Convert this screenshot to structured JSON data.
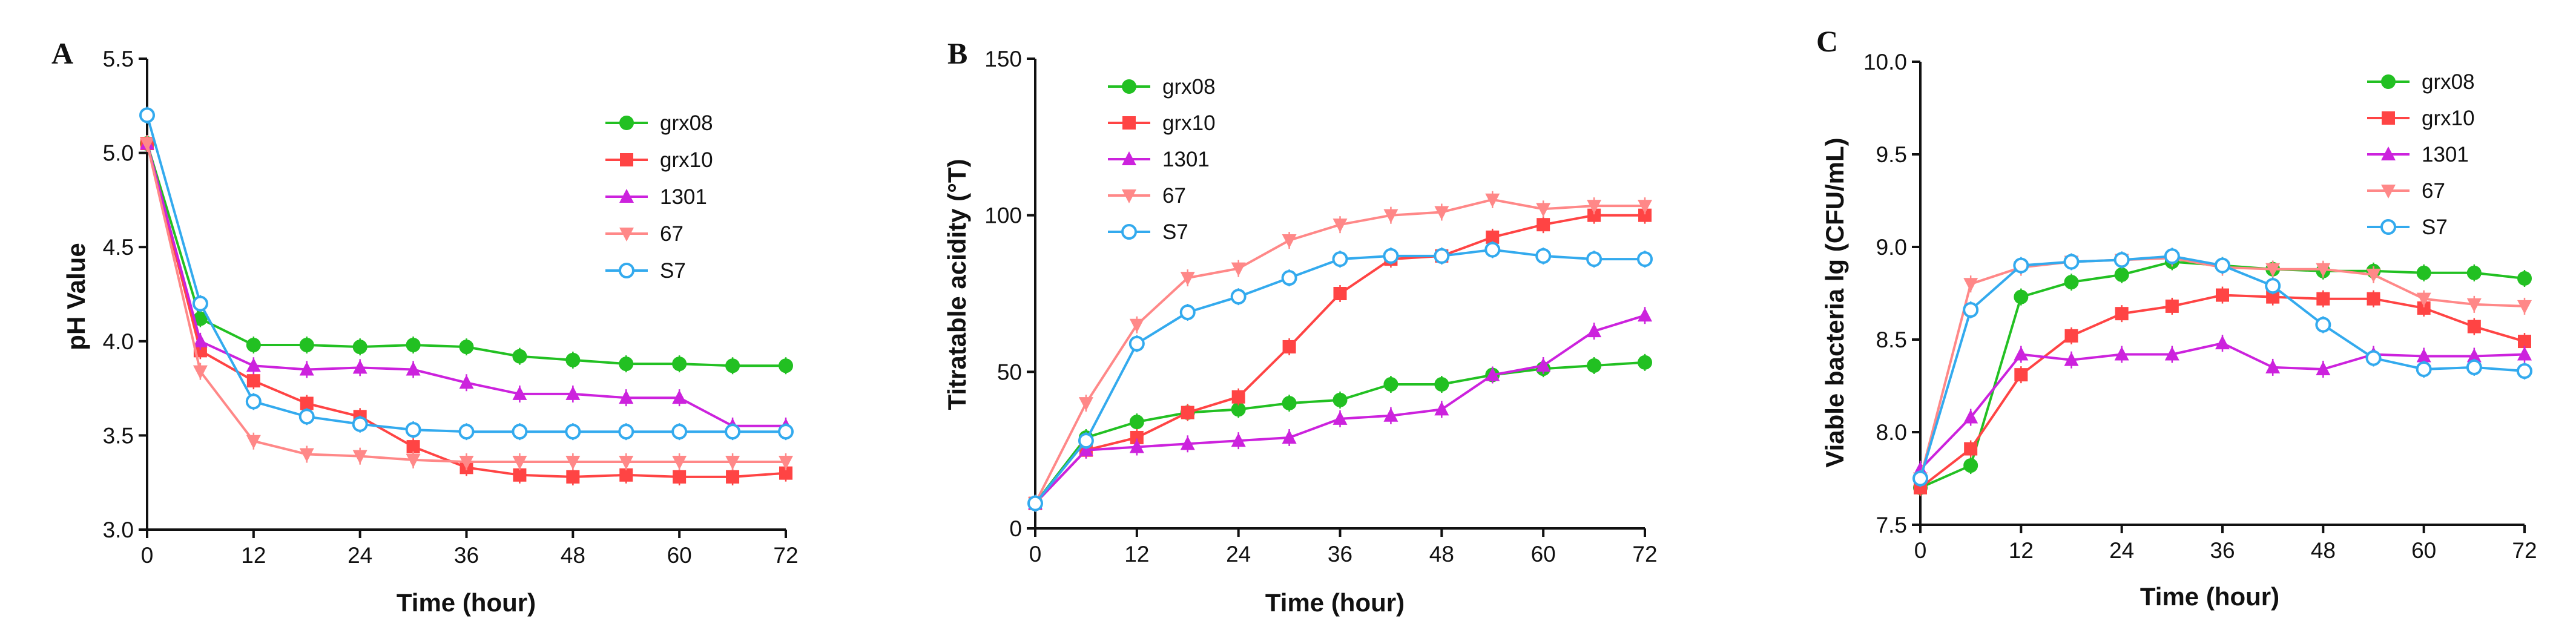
{
  "chart_data": [
    {
      "panel": "A",
      "type": "line",
      "title": "",
      "xlabel": "Time (hour)",
      "ylabel": "pH Value",
      "xlim": [
        0,
        72
      ],
      "ylim": [
        3.0,
        5.5
      ],
      "xticks": [
        "0",
        "12",
        "24",
        "36",
        "48",
        "60",
        "72"
      ],
      "yticks": [
        "3.0",
        "3.5",
        "4.0",
        "4.5",
        "5.0",
        "5.5"
      ],
      "x": [
        0,
        6,
        12,
        18,
        24,
        30,
        36,
        42,
        48,
        54,
        60,
        66,
        72
      ],
      "legend_position": "top-right",
      "series": [
        {
          "name": "grx08",
          "color": "#22c022",
          "marker": "circle",
          "values": [
            5.05,
            4.12,
            3.98,
            3.98,
            3.97,
            3.98,
            3.97,
            3.92,
            3.9,
            3.88,
            3.88,
            3.87,
            3.87
          ]
        },
        {
          "name": "grx10",
          "color": "#ff4444",
          "marker": "square",
          "values": [
            5.05,
            3.95,
            3.79,
            3.67,
            3.6,
            3.44,
            3.33,
            3.29,
            3.28,
            3.29,
            3.28,
            3.28,
            3.3
          ]
        },
        {
          "name": "1301",
          "color": "#cc22dd",
          "marker": "triangle-up",
          "values": [
            5.05,
            4.0,
            3.87,
            3.85,
            3.86,
            3.85,
            3.78,
            3.72,
            3.72,
            3.7,
            3.7,
            3.55,
            3.55
          ]
        },
        {
          "name": "67",
          "color": "#ff8888",
          "marker": "triangle-down",
          "values": [
            5.05,
            3.84,
            3.47,
            3.4,
            3.39,
            3.37,
            3.36,
            3.36,
            3.36,
            3.36,
            3.36,
            3.36,
            3.36
          ]
        },
        {
          "name": "S7",
          "color": "#33aaee",
          "marker": "open-circle",
          "values": [
            5.2,
            4.2,
            3.68,
            3.6,
            3.56,
            3.53,
            3.52,
            3.52,
            3.52,
            3.52,
            3.52,
            3.52,
            3.52
          ]
        }
      ]
    },
    {
      "panel": "B",
      "type": "line",
      "title": "",
      "xlabel": "Time (hour)",
      "ylabel": "Titratable acidity (°T)",
      "xlim": [
        0,
        72
      ],
      "ylim": [
        0,
        150
      ],
      "xticks": [
        "0",
        "12",
        "24",
        "36",
        "48",
        "60",
        "72"
      ],
      "yticks": [
        "0",
        "50",
        "100",
        "150"
      ],
      "x": [
        0,
        6,
        12,
        18,
        24,
        30,
        36,
        42,
        48,
        54,
        60,
        66,
        72
      ],
      "legend_position": "top-left",
      "series": [
        {
          "name": "grx08",
          "color": "#22c022",
          "marker": "circle",
          "values": [
            8,
            29,
            34,
            37,
            38,
            40,
            41,
            46,
            46,
            49,
            51,
            52,
            53
          ]
        },
        {
          "name": "grx10",
          "color": "#ff4444",
          "marker": "square",
          "values": [
            8,
            25,
            29,
            37,
            42,
            58,
            75,
            86,
            87,
            93,
            97,
            100,
            100
          ]
        },
        {
          "name": "1301",
          "color": "#cc22dd",
          "marker": "triangle-up",
          "values": [
            8,
            25,
            26,
            27,
            28,
            29,
            35,
            36,
            38,
            49,
            52,
            63,
            68
          ]
        },
        {
          "name": "67",
          "color": "#ff8888",
          "marker": "triangle-down",
          "values": [
            8,
            40,
            65,
            80,
            83,
            92,
            97,
            100,
            101,
            105,
            102,
            103,
            103
          ]
        },
        {
          "name": "S7",
          "color": "#33aaee",
          "marker": "open-circle",
          "values": [
            8,
            28,
            59,
            69,
            74,
            80,
            86,
            87,
            87,
            89,
            87,
            86,
            86
          ]
        }
      ]
    },
    {
      "panel": "C",
      "type": "line",
      "title": "",
      "xlabel": "Time (hour)",
      "ylabel": "Viable bacteria lg (CFU/mL)",
      "xlim": [
        0,
        72
      ],
      "ylim": [
        7.5,
        10.0
      ],
      "xticks": [
        "0",
        "12",
        "24",
        "36",
        "48",
        "60",
        "72"
      ],
      "yticks": [
        "7.5",
        "8.0",
        "8.5",
        "9.0",
        "9.5",
        "10.0"
      ],
      "x": [
        0,
        6,
        12,
        18,
        24,
        30,
        36,
        42,
        48,
        54,
        60,
        66,
        72
      ],
      "legend_position": "top-right",
      "series": [
        {
          "name": "grx08",
          "color": "#22c022",
          "marker": "circle",
          "values": [
            7.7,
            7.82,
            8.73,
            8.81,
            8.85,
            8.92,
            8.9,
            8.88,
            8.87,
            8.87,
            8.86,
            8.86,
            8.83
          ]
        },
        {
          "name": "grx10",
          "color": "#ff4444",
          "marker": "square",
          "values": [
            7.7,
            7.91,
            8.31,
            8.52,
            8.64,
            8.68,
            8.74,
            8.73,
            8.72,
            8.72,
            8.67,
            8.57,
            8.49
          ]
        },
        {
          "name": "1301",
          "color": "#cc22dd",
          "marker": "triangle-up",
          "values": [
            7.8,
            8.08,
            8.42,
            8.39,
            8.42,
            8.42,
            8.48,
            8.35,
            8.34,
            8.42,
            8.41,
            8.41,
            8.42
          ]
        },
        {
          "name": "67",
          "color": "#ff8888",
          "marker": "triangle-down",
          "values": [
            7.75,
            8.8,
            8.89,
            8.92,
            8.93,
            8.94,
            8.89,
            8.88,
            8.88,
            8.85,
            8.72,
            8.69,
            8.68
          ]
        },
        {
          "name": "S7",
          "color": "#33aaee",
          "marker": "open-circle",
          "values": [
            7.75,
            8.66,
            8.9,
            8.92,
            8.93,
            8.95,
            8.9,
            8.79,
            8.58,
            8.4,
            8.34,
            8.35,
            8.33
          ]
        }
      ]
    }
  ]
}
